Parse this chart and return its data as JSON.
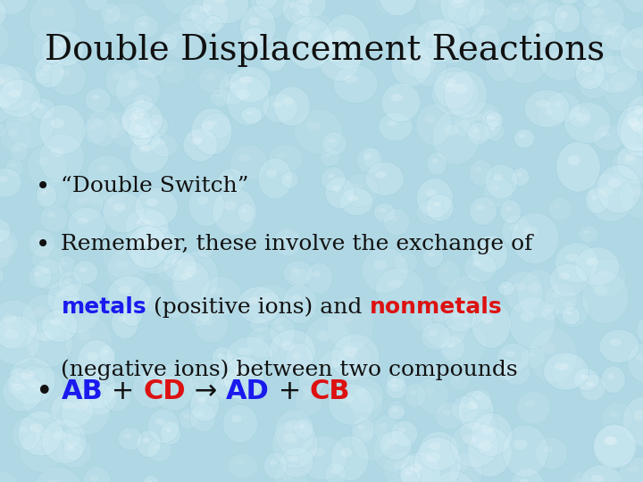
{
  "title": "Double Displacement Reactions",
  "title_fontsize": 28,
  "title_color": "#111111",
  "bg_color": "#b0d8e4",
  "bullet1": "“Double Switch”",
  "bullet2_part1": "Remember, these involve the exchange of",
  "bullet2_metals": "metals",
  "bullet2_mid": " (positive ions) and ",
  "bullet2_nonmetals": "nonmetals",
  "bullet2_part3": "(negative ions) between two compounds",
  "bullet3_AB": "AB",
  "bullet3_plus1": " + ",
  "bullet3_CD": "CD",
  "bullet3_arrow": " → ",
  "bullet3_AD": "AD",
  "bullet3_plus2": " + ",
  "bullet3_CB": "CB",
  "metals_color": "#1a1aee",
  "nonmetals_color": "#dd1111",
  "blue_color": "#1a1aee",
  "red_color": "#dd1111",
  "black_color": "#111111",
  "body_fontsize": 18,
  "bullet3_fontsize": 22
}
